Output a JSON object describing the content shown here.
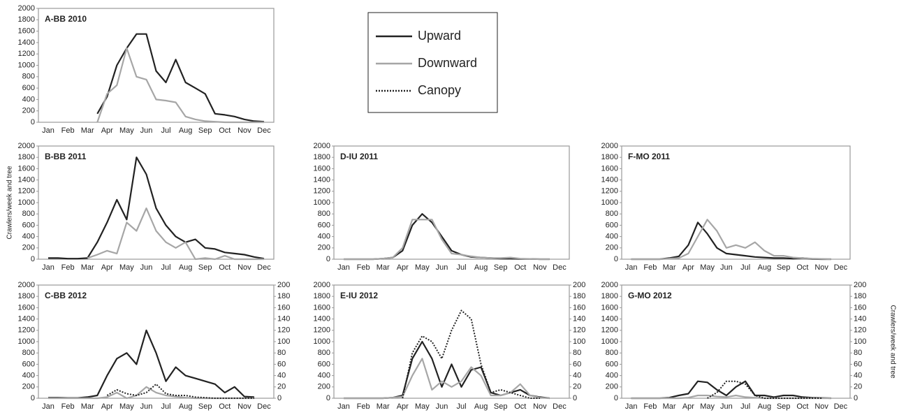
{
  "chart_data": [
    {
      "type": "line",
      "title": "A-BB 2010",
      "xlim": [
        0,
        12
      ],
      "ylim": [
        0,
        2000
      ],
      "x": [
        0.5,
        1,
        1.5,
        2,
        2.5,
        3,
        3.5,
        4,
        4.5,
        5,
        5.5,
        6,
        6.5,
        7,
        7.5,
        8,
        8.5,
        9,
        9.5,
        10,
        10.5,
        11,
        11.5
      ],
      "xticks": [
        {
          "value": 0.5,
          "label": "Jan"
        },
        {
          "value": 1.5,
          "label": "Feb"
        },
        {
          "value": 2.5,
          "label": "Mar"
        },
        {
          "value": 3.5,
          "label": "Apr"
        },
        {
          "value": 4.5,
          "label": "May"
        },
        {
          "value": 5.5,
          "label": "Jun"
        },
        {
          "value": 6.5,
          "label": "Jul"
        },
        {
          "value": 7.5,
          "label": "Aug"
        },
        {
          "value": 8.5,
          "label": "Sep"
        },
        {
          "value": 9.5,
          "label": "Oct"
        },
        {
          "value": 10.5,
          "label": "Nov"
        },
        {
          "value": 11.5,
          "label": "Dec"
        }
      ],
      "yticks": [
        0,
        200,
        400,
        600,
        800,
        1000,
        1200,
        1400,
        1600,
        1800,
        2000
      ],
      "series": [
        {
          "name": "Upward",
          "color": "#222222",
          "values": [
            null,
            null,
            null,
            null,
            null,
            150,
            450,
            1000,
            1300,
            1550,
            1550,
            900,
            700,
            1100,
            700,
            600,
            500,
            150,
            130,
            100,
            50,
            20,
            10
          ]
        },
        {
          "name": "Downward",
          "color": "#a6a6a6",
          "values": [
            null,
            null,
            null,
            null,
            null,
            0,
            500,
            650,
            1300,
            800,
            750,
            400,
            380,
            350,
            100,
            50,
            20,
            10,
            0,
            0,
            0,
            0,
            0
          ]
        }
      ]
    },
    {
      "type": "line",
      "title": "B-BB 2011",
      "ylabel": "Crawlers/week and tree",
      "xlim": [
        0,
        12
      ],
      "ylim": [
        0,
        2000
      ],
      "x": [
        0.5,
        1,
        1.5,
        2,
        2.5,
        3,
        3.5,
        4,
        4.5,
        5,
        5.5,
        6,
        6.5,
        7,
        7.5,
        8,
        8.5,
        9,
        9.5,
        10,
        10.5,
        11,
        11.5
      ],
      "xticks": [
        {
          "value": 0.5,
          "label": "Jan"
        },
        {
          "value": 1.5,
          "label": "Feb"
        },
        {
          "value": 2.5,
          "label": "Mar"
        },
        {
          "value": 3.5,
          "label": "Apr"
        },
        {
          "value": 4.5,
          "label": "May"
        },
        {
          "value": 5.5,
          "label": "Jun"
        },
        {
          "value": 6.5,
          "label": "Jul"
        },
        {
          "value": 7.5,
          "label": "Aug"
        },
        {
          "value": 8.5,
          "label": "Sep"
        },
        {
          "value": 9.5,
          "label": "Oct"
        },
        {
          "value": 10.5,
          "label": "Nov"
        },
        {
          "value": 11.5,
          "label": "Dec"
        }
      ],
      "yticks": [
        0,
        200,
        400,
        600,
        800,
        1000,
        1200,
        1400,
        1600,
        1800,
        2000
      ],
      "series": [
        {
          "name": "Upward",
          "color": "#222222",
          "values": [
            20,
            20,
            10,
            10,
            20,
            300,
            650,
            1050,
            700,
            1800,
            1500,
            900,
            600,
            400,
            300,
            350,
            200,
            180,
            120,
            100,
            80,
            40,
            10
          ]
        },
        {
          "name": "Downward",
          "color": "#a6a6a6",
          "values": [
            null,
            null,
            null,
            null,
            20,
            80,
            150,
            100,
            650,
            500,
            900,
            500,
            300,
            200,
            300,
            0,
            20,
            0,
            60,
            0,
            0,
            0,
            0
          ]
        }
      ]
    },
    {
      "type": "line",
      "title": "C-BB 2012",
      "xlim": [
        0,
        12
      ],
      "ylim": [
        0,
        2000
      ],
      "y2lim": [
        0,
        200
      ],
      "x": [
        0.5,
        1,
        1.5,
        2,
        2.5,
        3,
        3.5,
        4,
        4.5,
        5,
        5.5,
        6,
        6.5,
        7,
        7.5,
        8,
        8.5,
        9,
        9.5,
        10,
        10.5,
        11,
        11.5
      ],
      "xticks": [
        {
          "value": 0.5,
          "label": "Jan"
        },
        {
          "value": 1.5,
          "label": "Feb"
        },
        {
          "value": 2.5,
          "label": "Mar"
        },
        {
          "value": 3.5,
          "label": "Apr"
        },
        {
          "value": 4.5,
          "label": "May"
        },
        {
          "value": 5.5,
          "label": "Jun"
        },
        {
          "value": 6.5,
          "label": "Jul"
        },
        {
          "value": 7.5,
          "label": "Aug"
        },
        {
          "value": 8.5,
          "label": "Sep"
        },
        {
          "value": 9.5,
          "label": "Oct"
        },
        {
          "value": 10.5,
          "label": "Nov"
        },
        {
          "value": 11.5,
          "label": "Dec"
        }
      ],
      "yticks": [
        0,
        200,
        400,
        600,
        800,
        1000,
        1200,
        1400,
        1600,
        1800,
        2000
      ],
      "y2ticks": [
        0,
        20,
        40,
        60,
        80,
        100,
        120,
        140,
        160,
        180,
        200
      ],
      "series": [
        {
          "name": "Upward",
          "color": "#222222",
          "values": [
            10,
            10,
            5,
            5,
            20,
            50,
            400,
            700,
            800,
            600,
            1200,
            800,
            300,
            550,
            400,
            350,
            300,
            250,
            100,
            200,
            30,
            20,
            null
          ]
        },
        {
          "name": "Downward",
          "color": "#a6a6a6",
          "values": [
            0,
            0,
            0,
            0,
            0,
            0,
            20,
            100,
            0,
            50,
            200,
            100,
            50,
            30,
            10,
            0,
            0,
            0,
            0,
            0,
            0,
            0,
            null
          ]
        },
        {
          "name": "Canopy",
          "color": "#222222",
          "linestyle": "dotted",
          "axis": "y2",
          "values": [
            null,
            null,
            null,
            null,
            null,
            null,
            5,
            15,
            8,
            5,
            10,
            25,
            8,
            5,
            5,
            2,
            1,
            0,
            0,
            0,
            0,
            0,
            null
          ]
        }
      ]
    },
    {
      "type": "line",
      "title": "D-IU 2011",
      "xlim": [
        0,
        12
      ],
      "ylim": [
        0,
        2000
      ],
      "x": [
        0.5,
        1,
        1.5,
        2,
        2.5,
        3,
        3.5,
        4,
        4.5,
        5,
        5.5,
        6,
        6.5,
        7,
        7.5,
        8,
        8.5,
        9,
        9.5,
        10,
        10.5,
        11,
        11.5
      ],
      "xticks": [
        {
          "value": 0.5,
          "label": "Jan"
        },
        {
          "value": 1.5,
          "label": "Feb"
        },
        {
          "value": 2.5,
          "label": "Mar"
        },
        {
          "value": 3.5,
          "label": "Apr"
        },
        {
          "value": 4.5,
          "label": "May"
        },
        {
          "value": 5.5,
          "label": "Jun"
        },
        {
          "value": 6.5,
          "label": "Jul"
        },
        {
          "value": 7.5,
          "label": "Aug"
        },
        {
          "value": 8.5,
          "label": "Sep"
        },
        {
          "value": 9.5,
          "label": "Oct"
        },
        {
          "value": 10.5,
          "label": "Nov"
        },
        {
          "value": 11.5,
          "label": "Dec"
        }
      ],
      "yticks": [
        0,
        200,
        400,
        600,
        800,
        1000,
        1200,
        1400,
        1600,
        1800,
        2000
      ],
      "series": [
        {
          "name": "Upward",
          "color": "#222222",
          "values": [
            0,
            0,
            0,
            0,
            10,
            30,
            150,
            600,
            800,
            650,
            400,
            150,
            80,
            40,
            30,
            20,
            10,
            10,
            5,
            5,
            0,
            0,
            null
          ]
        },
        {
          "name": "Downward",
          "color": "#a6a6a6",
          "values": [
            0,
            0,
            0,
            0,
            10,
            30,
            200,
            700,
            700,
            700,
            350,
            100,
            80,
            50,
            30,
            20,
            20,
            30,
            10,
            5,
            0,
            0,
            null
          ]
        }
      ]
    },
    {
      "type": "line",
      "title": "E-IU 2012",
      "xlim": [
        0,
        12
      ],
      "ylim": [
        0,
        2000
      ],
      "y2lim": [
        0,
        200
      ],
      "x": [
        0.5,
        1,
        1.5,
        2,
        2.5,
        3,
        3.5,
        4,
        4.5,
        5,
        5.5,
        6,
        6.5,
        7,
        7.5,
        8,
        8.5,
        9,
        9.5,
        10,
        10.5,
        11,
        11.5
      ],
      "xticks": [
        {
          "value": 0.5,
          "label": "Jan"
        },
        {
          "value": 1.5,
          "label": "Feb"
        },
        {
          "value": 2.5,
          "label": "Mar"
        },
        {
          "value": 3.5,
          "label": "Apr"
        },
        {
          "value": 4.5,
          "label": "May"
        },
        {
          "value": 5.5,
          "label": "Jun"
        },
        {
          "value": 6.5,
          "label": "Jul"
        },
        {
          "value": 7.5,
          "label": "Aug"
        },
        {
          "value": 8.5,
          "label": "Sep"
        },
        {
          "value": 9.5,
          "label": "Oct"
        },
        {
          "value": 10.5,
          "label": "Nov"
        },
        {
          "value": 11.5,
          "label": "Dec"
        }
      ],
      "yticks": [
        0,
        200,
        400,
        600,
        800,
        1000,
        1200,
        1400,
        1600,
        1800,
        2000
      ],
      "y2ticks": [
        0,
        20,
        40,
        60,
        80,
        100,
        120,
        140,
        160,
        180,
        200
      ],
      "series": [
        {
          "name": "Upward",
          "color": "#222222",
          "values": [
            0,
            0,
            0,
            0,
            0,
            10,
            50,
            700,
            1000,
            700,
            200,
            600,
            200,
            500,
            550,
            100,
            50,
            100,
            150,
            50,
            20,
            0,
            null
          ]
        },
        {
          "name": "Downward",
          "color": "#a6a6a6",
          "values": [
            0,
            0,
            0,
            0,
            0,
            10,
            30,
            400,
            700,
            150,
            300,
            200,
            300,
            550,
            400,
            50,
            50,
            100,
            250,
            50,
            10,
            0,
            null
          ]
        },
        {
          "name": "Canopy",
          "color": "#222222",
          "linestyle": "dotted",
          "axis": "y2",
          "values": [
            null,
            null,
            null,
            null,
            null,
            null,
            0,
            80,
            110,
            100,
            70,
            120,
            155,
            140,
            60,
            10,
            15,
            10,
            5,
            0,
            0,
            null,
            null
          ]
        }
      ]
    },
    {
      "type": "line",
      "title": "F-MO 2011",
      "xlim": [
        0,
        12
      ],
      "ylim": [
        0,
        2000
      ],
      "x": [
        0.5,
        1,
        1.5,
        2,
        2.5,
        3,
        3.5,
        4,
        4.5,
        5,
        5.5,
        6,
        6.5,
        7,
        7.5,
        8,
        8.5,
        9,
        9.5,
        10,
        10.5,
        11,
        11.5
      ],
      "xticks": [
        {
          "value": 0.5,
          "label": "Jan"
        },
        {
          "value": 1.5,
          "label": "Feb"
        },
        {
          "value": 2.5,
          "label": "Mar"
        },
        {
          "value": 3.5,
          "label": "Apr"
        },
        {
          "value": 4.5,
          "label": "May"
        },
        {
          "value": 5.5,
          "label": "Jun"
        },
        {
          "value": 6.5,
          "label": "Jul"
        },
        {
          "value": 7.5,
          "label": "Aug"
        },
        {
          "value": 8.5,
          "label": "Sep"
        },
        {
          "value": 9.5,
          "label": "Oct"
        },
        {
          "value": 10.5,
          "label": "Nov"
        },
        {
          "value": 11.5,
          "label": "Dec"
        }
      ],
      "yticks": [
        0,
        200,
        400,
        600,
        800,
        1000,
        1200,
        1400,
        1600,
        1800,
        2000
      ],
      "series": [
        {
          "name": "Upward",
          "color": "#222222",
          "values": [
            0,
            0,
            0,
            0,
            20,
            50,
            250,
            650,
            450,
            200,
            100,
            80,
            60,
            40,
            30,
            20,
            20,
            10,
            20,
            5,
            0,
            0,
            null
          ]
        },
        {
          "name": "Downward",
          "color": "#a6a6a6",
          "values": [
            0,
            0,
            0,
            0,
            10,
            20,
            100,
            400,
            700,
            500,
            200,
            250,
            200,
            300,
            150,
            60,
            60,
            30,
            20,
            10,
            5,
            0,
            null
          ]
        }
      ]
    },
    {
      "type": "line",
      "title": "G-MO 2012",
      "y2label": "Crawlers/week and tree",
      "xlim": [
        0,
        12
      ],
      "ylim": [
        0,
        2000
      ],
      "y2lim": [
        0,
        200
      ],
      "x": [
        0.5,
        1,
        1.5,
        2,
        2.5,
        3,
        3.5,
        4,
        4.5,
        5,
        5.5,
        6,
        6.5,
        7,
        7.5,
        8,
        8.5,
        9,
        9.5,
        10,
        10.5,
        11,
        11.5
      ],
      "xticks": [
        {
          "value": 0.5,
          "label": "Jan"
        },
        {
          "value": 1.5,
          "label": "Feb"
        },
        {
          "value": 2.5,
          "label": "Mar"
        },
        {
          "value": 3.5,
          "label": "Apr"
        },
        {
          "value": 4.5,
          "label": "May"
        },
        {
          "value": 5.5,
          "label": "Jun"
        },
        {
          "value": 6.5,
          "label": "Jul"
        },
        {
          "value": 7.5,
          "label": "Aug"
        },
        {
          "value": 8.5,
          "label": "Sep"
        },
        {
          "value": 9.5,
          "label": "Oct"
        },
        {
          "value": 10.5,
          "label": "Nov"
        },
        {
          "value": 11.5,
          "label": "Dec"
        }
      ],
      "yticks": [
        0,
        200,
        400,
        600,
        800,
        1000,
        1200,
        1400,
        1600,
        1800,
        2000
      ],
      "y2ticks": [
        0,
        20,
        40,
        60,
        80,
        100,
        120,
        140,
        160,
        180,
        200
      ],
      "series": [
        {
          "name": "Upward",
          "color": "#222222",
          "values": [
            0,
            0,
            0,
            0,
            10,
            50,
            80,
            300,
            280,
            150,
            50,
            200,
            300,
            50,
            50,
            20,
            50,
            50,
            20,
            10,
            5,
            0,
            null
          ]
        },
        {
          "name": "Downward",
          "color": "#a6a6a6",
          "values": [
            0,
            0,
            0,
            0,
            0,
            0,
            10,
            50,
            50,
            30,
            20,
            50,
            20,
            10,
            0,
            0,
            0,
            0,
            0,
            0,
            0,
            0,
            null
          ]
        },
        {
          "name": "Canopy",
          "color": "#222222",
          "linestyle": "dotted",
          "axis": "y2",
          "values": [
            null,
            null,
            null,
            null,
            null,
            null,
            null,
            null,
            0,
            10,
            30,
            30,
            25,
            5,
            0,
            0,
            0,
            0,
            0,
            0,
            0,
            null,
            null
          ]
        }
      ]
    }
  ]
}
